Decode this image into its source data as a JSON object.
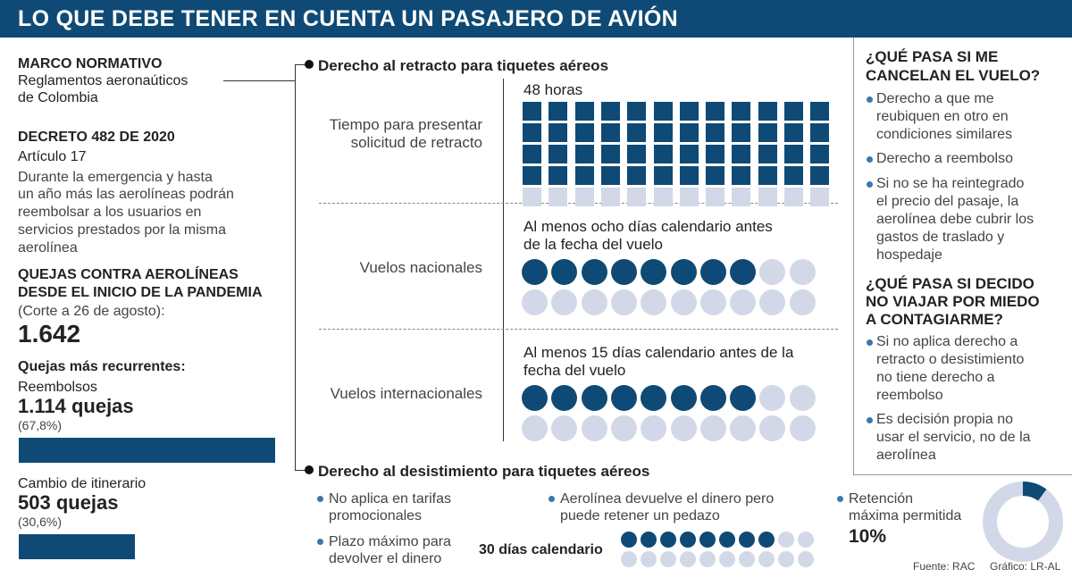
{
  "title": "LO QUE DEBE TENER EN CUENTA UN PASAJERO DE AVIÓN",
  "left": {
    "marco_title": "MARCO NORMATIVO",
    "marco_line1": "Reglamentos aeronaúticos",
    "marco_line2": "de Colombia",
    "decreto_title": "DECRETO 482 DE 2020",
    "articulo": "Artículo 17",
    "decreto_lines": [
      "Durante la emergencia y hasta",
      "un año más las aerolíneas podrán",
      "reembolsar a los usuarios en",
      "servicios prestados por la misma",
      "aerolínea"
    ],
    "quejas_title1": "QUEJAS CONTRA AEROLÍNEAS",
    "quejas_title2": "DESDE EL INICIO DE LA PANDEMIA",
    "corte": "(Corte a 26 de agosto):",
    "total": "1.642",
    "recurrentes": "Quejas más recurrentes:",
    "items": [
      {
        "label": "Reembolsos",
        "count": "1.114 quejas",
        "pct": "(67,8%)",
        "share": 0.678
      },
      {
        "label": "Cambio de itinerario",
        "count": "503 quejas",
        "pct": "(30,6%)",
        "share": 0.306
      }
    ]
  },
  "retracto": {
    "heading": "Derecho al retracto para tiquetes aéreos",
    "rows": [
      {
        "label1": "Tiempo para presentar",
        "label2": "solicitud de retracto",
        "caption1": "48 horas",
        "caption2": "",
        "filled": 48,
        "total": 60
      },
      {
        "label1": "Vuelos nacionales",
        "label2": "",
        "caption1": "Al menos ocho días calendario antes",
        "caption2": "de la fecha del vuelo",
        "filled": 8,
        "total": 20
      },
      {
        "label1": "Vuelos internacionales",
        "label2": "",
        "caption1": "Al menos 15 días calendario antes de la",
        "caption2": "fecha del vuelo",
        "filled": 8,
        "total": 20
      }
    ]
  },
  "desistimiento": {
    "heading": "Derecho al desistimiento para tiquetes aéreos",
    "b1": [
      "No aplica en tarifas",
      "promocionales"
    ],
    "b2": [
      "Plazo máximo para",
      "devolver el dinero"
    ],
    "b3": [
      "Aerolínea devuelve el dinero pero",
      "puede retener un pedazo"
    ],
    "dias_label": "30 días calendario",
    "dias_filled": 8,
    "dias_total": 20,
    "b4": [
      "Retención",
      "máxima permitida"
    ],
    "retencion": "10%",
    "retencion_share": 0.1
  },
  "right": {
    "q1": [
      "¿QUÉ PASA SI ME",
      "CANCELAN EL VUELO?"
    ],
    "q1_items": [
      [
        "Derecho a que me",
        "reubiquen en otro en",
        "condiciones similares"
      ],
      [
        "Derecho a reembolso"
      ],
      [
        "Si no se ha reintegrado",
        "el precio del pasaje, la",
        "aerolínea debe cubrir los",
        "gastos de traslado y",
        "hospedaje"
      ]
    ],
    "q2": [
      "¿QUÉ PASA SI DECIDO",
      "NO VIAJAR POR MIEDO",
      "A CONTAGIARME?"
    ],
    "q2_items": [
      [
        "Si no aplica derecho a",
        "retracto o desistimiento",
        "no tiene derecho a",
        "reembolso"
      ],
      [
        "Es decisión propia no",
        "usar el servicio, no de la",
        "aerolínea"
      ]
    ]
  },
  "footer": {
    "fuente": "Fuente: RAC",
    "grafico": "Gráfico: LR-AL"
  },
  "colors": {
    "primary": "#0e4a75",
    "empty": "#d3d8e8",
    "bullet": "#3a78b0"
  }
}
